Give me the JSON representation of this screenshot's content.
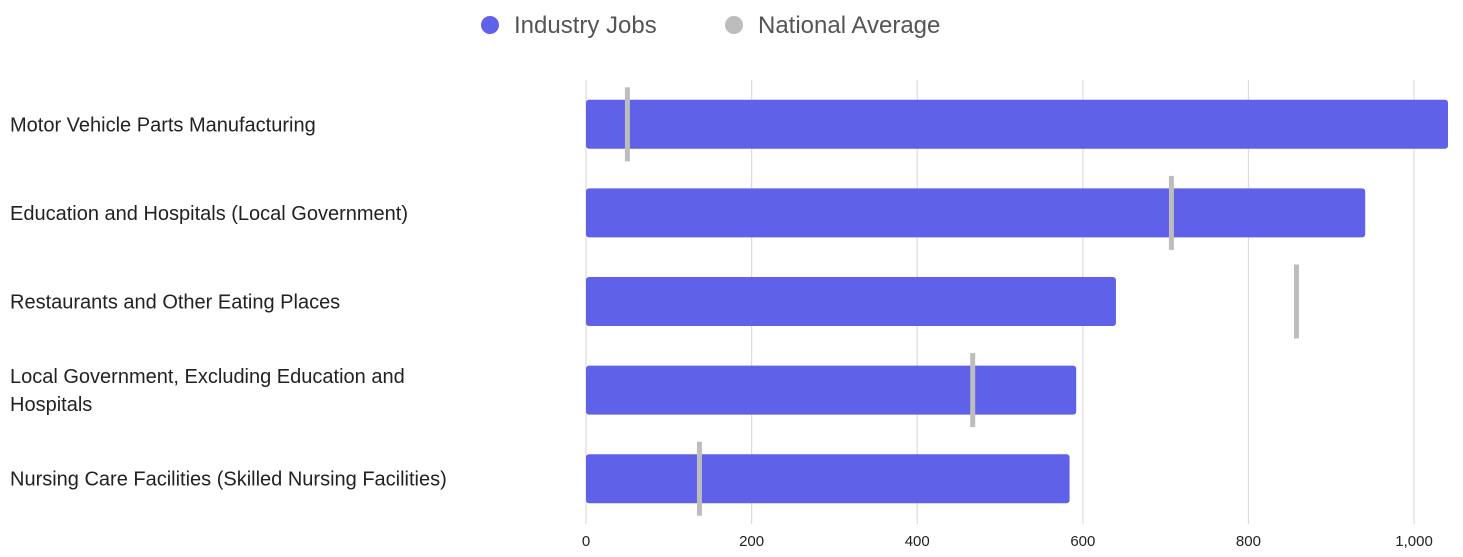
{
  "chart_data": {
    "type": "bar",
    "orientation": "horizontal",
    "categories": [
      [
        "Motor Vehicle Parts Manufacturing"
      ],
      [
        "Education and Hospitals (Local Government)"
      ],
      [
        "Restaurants and Other Eating Places"
      ],
      [
        "Local Government, Excluding Education and",
        "Hospitals"
      ],
      [
        "Nursing Care Facilities (Skilled Nursing Facilities)"
      ]
    ],
    "series": [
      {
        "name": "Industry Jobs",
        "color": "#5f61e8",
        "marker": "bar",
        "values": [
          1041,
          941,
          640,
          592,
          584
        ]
      },
      {
        "name": "National Average",
        "color": "#bdbdbd",
        "marker": "tick",
        "values": [
          50,
          707,
          858,
          467,
          137
        ]
      }
    ],
    "xlim": [
      0,
      1041
    ],
    "xticks": [
      0,
      200,
      400,
      600,
      800,
      1000
    ],
    "xtick_labels": [
      "0",
      "200",
      "400",
      "600",
      "800",
      "1,000"
    ],
    "grid": true,
    "legend_position": "top-center"
  }
}
